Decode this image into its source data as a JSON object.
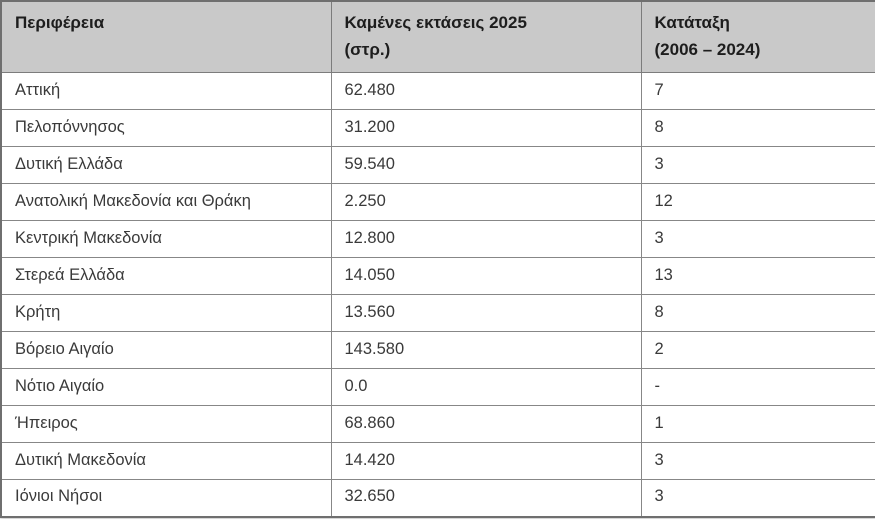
{
  "chart_data": {
    "type": "table",
    "title": "",
    "columns": [
      "Περιφέρεια",
      "Καμένες εκτάσεις 2025 (στρ.)",
      "Κατάταξη (2006 – 2024)"
    ],
    "rows": [
      [
        "Αττική",
        "62.480",
        "7"
      ],
      [
        "Πελοπόννησος",
        "31.200",
        "8"
      ],
      [
        "Δυτική Ελλάδα",
        "59.540",
        "3"
      ],
      [
        "Ανατολική Μακεδονία και Θράκη",
        "2.250",
        "12"
      ],
      [
        "Κεντρική Μακεδονία",
        "12.800",
        "3"
      ],
      [
        "Στερεά Ελλάδα",
        "14.050",
        "13"
      ],
      [
        "Κρήτη",
        "13.560",
        "8"
      ],
      [
        "Βόρειο Αιγαίο",
        "143.580",
        "2"
      ],
      [
        "Νότιο Αιγαίο",
        "0.0",
        "-"
      ],
      [
        "Ήπειρος",
        "68.860",
        "1"
      ],
      [
        "Δυτική Μακεδονία",
        "14.420",
        "3"
      ],
      [
        "Ιόνιοι Νήσοι",
        "32.650",
        "3"
      ]
    ]
  },
  "table": {
    "header": {
      "col1": {
        "line1": "Περιφέρεια",
        "line2": ""
      },
      "col2": {
        "line1": "Καμένες εκτάσεις 2025",
        "line2": "(στρ.)"
      },
      "col3": {
        "line1": "Κατάταξη",
        "line2": "(2006 – 2024)"
      }
    },
    "rows": [
      {
        "region": "Αττική",
        "burned_area": "62.480",
        "rank": "7"
      },
      {
        "region": "Πελοπόννησος",
        "burned_area": "31.200",
        "rank": "8"
      },
      {
        "region": "Δυτική Ελλάδα",
        "burned_area": "59.540",
        "rank": "3"
      },
      {
        "region": "Ανατολική Μακεδονία και Θράκη",
        "burned_area": "2.250",
        "rank": "12"
      },
      {
        "region": "Κεντρική Μακεδονία",
        "burned_area": "12.800",
        "rank": "3"
      },
      {
        "region": "Στερεά Ελλάδα",
        "burned_area": "14.050",
        "rank": "13"
      },
      {
        "region": "Κρήτη",
        "burned_area": "13.560",
        "rank": "8"
      },
      {
        "region": "Βόρειο Αιγαίο",
        "burned_area": "143.580",
        "rank": "2"
      },
      {
        "region": "Νότιο Αιγαίο",
        "burned_area": "0.0",
        "rank": "-"
      },
      {
        "region": "Ήπειρος",
        "burned_area": "68.860",
        "rank": "1"
      },
      {
        "region": "Δυτική Μακεδονία",
        "burned_area": "14.420",
        "rank": "3"
      },
      {
        "region": "Ιόνιοι Νήσοι",
        "burned_area": "32.650",
        "rank": "3"
      }
    ]
  },
  "colors": {
    "header_background": "#c9c9c9",
    "header_text": "#1d1d1d",
    "body_text": "#3a3a3a",
    "border": "#878787",
    "row_background": "#ffffff"
  }
}
